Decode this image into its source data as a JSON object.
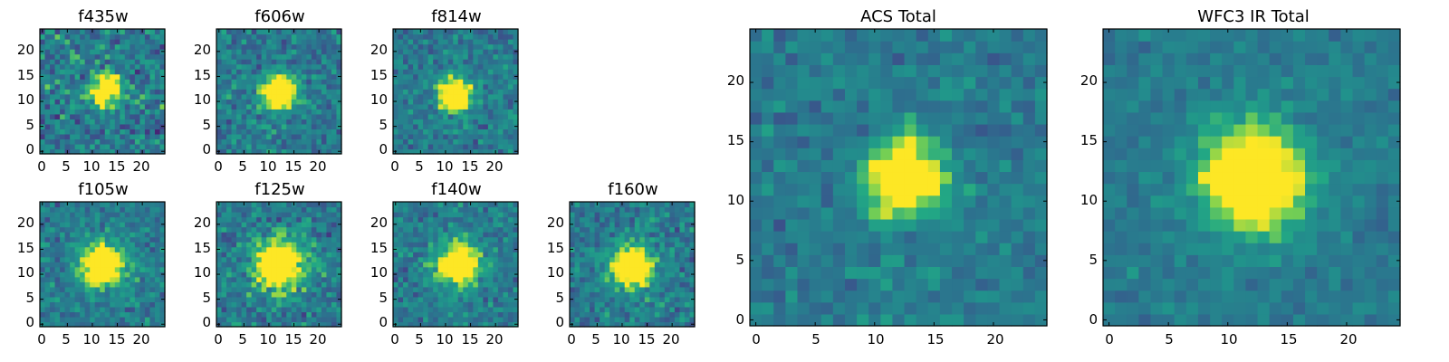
{
  "chart_data": [
    {
      "type": "heatmap",
      "title": "f435w",
      "x_ticks": [
        "0",
        "5",
        "10",
        "15",
        "20"
      ],
      "y_ticks": [
        "0",
        "5",
        "10",
        "15",
        "20"
      ],
      "xlim": [
        0,
        24
      ],
      "ylim": [
        0,
        24
      ],
      "grid_size": 24,
      "peak": [
        12.5,
        12
      ],
      "sigma": 2.2,
      "noise": 0.55,
      "seed": 11,
      "colormap": "viridis"
    },
    {
      "type": "heatmap",
      "title": "f606w",
      "x_ticks": [
        "0",
        "5",
        "10",
        "15",
        "20"
      ],
      "y_ticks": [
        "0",
        "5",
        "10",
        "15",
        "20"
      ],
      "xlim": [
        0,
        24
      ],
      "ylim": [
        0,
        24
      ],
      "grid_size": 24,
      "peak": [
        12,
        12
      ],
      "sigma": 2.4,
      "noise": 0.45,
      "seed": 23,
      "colormap": "viridis"
    },
    {
      "type": "heatmap",
      "title": "f814w",
      "x_ticks": [
        "0",
        "5",
        "10",
        "15",
        "20"
      ],
      "y_ticks": [
        "0",
        "5",
        "10",
        "15",
        "20"
      ],
      "xlim": [
        0,
        24
      ],
      "ylim": [
        0,
        24
      ],
      "grid_size": 24,
      "peak": [
        12,
        11.5
      ],
      "sigma": 2.3,
      "noise": 0.4,
      "seed": 37,
      "colormap": "viridis"
    },
    {
      "type": "heatmap",
      "title": "f105w",
      "x_ticks": [
        "0",
        "5",
        "10",
        "15",
        "20"
      ],
      "y_ticks": [
        "0",
        "5",
        "10",
        "15",
        "20"
      ],
      "xlim": [
        0,
        24
      ],
      "ylim": [
        0,
        24
      ],
      "grid_size": 24,
      "peak": [
        12,
        12
      ],
      "sigma": 3.0,
      "noise": 0.4,
      "seed": 41,
      "colormap": "viridis"
    },
    {
      "type": "heatmap",
      "title": "f125w",
      "x_ticks": [
        "0",
        "5",
        "10",
        "15",
        "20"
      ],
      "y_ticks": [
        "0",
        "5",
        "10",
        "15",
        "20"
      ],
      "xlim": [
        0,
        24
      ],
      "ylim": [
        0,
        24
      ],
      "grid_size": 24,
      "peak": [
        12,
        12
      ],
      "sigma": 3.4,
      "noise": 0.45,
      "seed": 53,
      "colormap": "viridis"
    },
    {
      "type": "heatmap",
      "title": "f140w",
      "x_ticks": [
        "0",
        "5",
        "10",
        "15",
        "20"
      ],
      "y_ticks": [
        "0",
        "5",
        "10",
        "15",
        "20"
      ],
      "xlim": [
        0,
        24
      ],
      "ylim": [
        0,
        24
      ],
      "grid_size": 24,
      "peak": [
        12.5,
        12
      ],
      "sigma": 3.0,
      "noise": 0.4,
      "seed": 67,
      "colormap": "viridis"
    },
    {
      "type": "heatmap",
      "title": "f160w",
      "x_ticks": [
        "0",
        "5",
        "10",
        "15",
        "20"
      ],
      "y_ticks": [
        "0",
        "5",
        "10",
        "15",
        "20"
      ],
      "xlim": [
        0,
        24
      ],
      "ylim": [
        0,
        24
      ],
      "grid_size": 24,
      "peak": [
        12,
        11.5
      ],
      "sigma": 2.9,
      "noise": 0.42,
      "seed": 79,
      "colormap": "viridis"
    },
    {
      "type": "heatmap",
      "title": "ACS Total",
      "x_ticks": [
        "0",
        "5",
        "10",
        "15",
        "20"
      ],
      "y_ticks": [
        "0",
        "5",
        "10",
        "15",
        "20"
      ],
      "xlim": [
        0,
        24
      ],
      "ylim": [
        0,
        24
      ],
      "grid_size": 24,
      "peak": [
        12.5,
        12
      ],
      "sigma": 2.2,
      "noise": 0.3,
      "seed": 91,
      "colormap": "viridis"
    },
    {
      "type": "heatmap",
      "title": "WFC3 IR Total",
      "x_ticks": [
        "0",
        "5",
        "10",
        "15",
        "20"
      ],
      "y_ticks": [
        "0",
        "5",
        "10",
        "15",
        "20"
      ],
      "xlim": [
        0,
        24
      ],
      "ylim": [
        0,
        24
      ],
      "grid_size": 24,
      "peak": [
        12,
        12
      ],
      "sigma": 3.0,
      "noise": 0.22,
      "seed": 103,
      "colormap": "viridis"
    }
  ]
}
